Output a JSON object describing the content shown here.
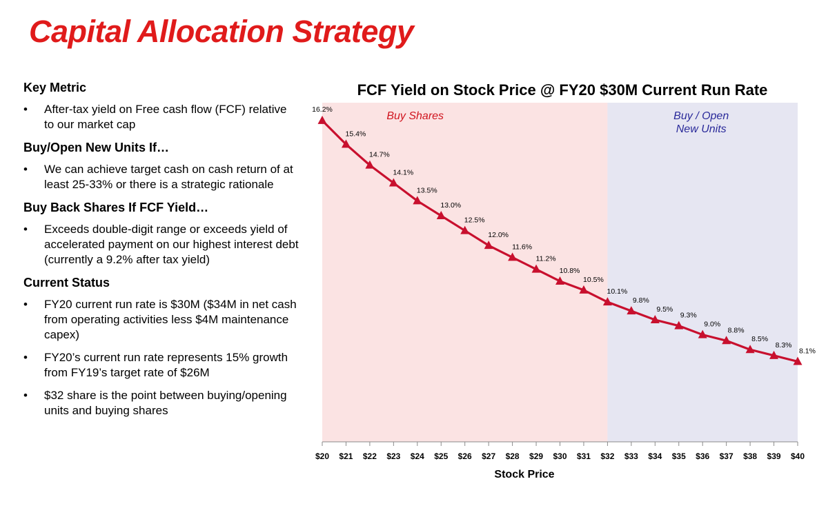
{
  "slide": {
    "title": "Capital Allocation Strategy",
    "sections": [
      {
        "heading": "Key Metric",
        "bullets": [
          "After-tax yield on Free cash flow (FCF) relative to our market cap"
        ]
      },
      {
        "heading": "Buy/Open New Units If…",
        "bullets": [
          "We can achieve target cash on cash return of at least 25-33% or there is a strategic rationale"
        ]
      },
      {
        "heading": "Buy Back Shares If FCF Yield…",
        "bullets": [
          "Exceeds double-digit range or exceeds yield of accelerated payment on our highest interest debt (currently a 9.2% after tax yield)"
        ]
      },
      {
        "heading": "Current Status",
        "bullets": [
          "FY20 current run rate is $30M ($34M in net cash from operating activities less $4M maintenance capex)",
          "FY20’s current run rate represents 15% growth from FY19’s target rate of $26M",
          "$32 share is the point between buying/opening units and buying shares"
        ]
      }
    ]
  },
  "colors": {
    "title": "#e01b1b",
    "line": "#c8102e",
    "buy_shares_region": "#fbe3e3",
    "buy_open_region": "#e6e6f2",
    "buy_shares_text": "#d0141e",
    "buy_open_text": "#2a2a9a"
  },
  "chart_data": {
    "type": "line",
    "title": "FCF Yield on Stock Price @ FY20 $30M Current Run Rate",
    "xlabel": "Stock Price",
    "ylabel": "",
    "categories": [
      "$20",
      "$21",
      "$22",
      "$23",
      "$24",
      "$25",
      "$26",
      "$27",
      "$28",
      "$29",
      "$30",
      "$31",
      "$32",
      "$33",
      "$34",
      "$35",
      "$36",
      "$37",
      "$38",
      "$39",
      "$40"
    ],
    "series": [
      {
        "name": "",
        "values": [
          16.2,
          15.4,
          14.7,
          14.1,
          13.5,
          13.0,
          12.5,
          12.0,
          11.6,
          11.2,
          10.8,
          10.5,
          10.1,
          9.8,
          9.5,
          9.3,
          9.0,
          8.8,
          8.5,
          8.3,
          8.1
        ],
        "labels": [
          "16.2%",
          "15.4%",
          "14.7%",
          "14.1%",
          "13.5%",
          "13.0%",
          "12.5%",
          "12.0%",
          "11.6%",
          "11.2%",
          "10.8%",
          "10.5%",
          "10.1%",
          "9.8%",
          "9.5%",
          "9.3%",
          "9.0%",
          "8.8%",
          "8.5%",
          "8.3%",
          "8.1%"
        ],
        "marker": "triangle"
      }
    ],
    "regions": [
      {
        "label": "Buy Shares",
        "from": "$20",
        "to": "$32",
        "color_key": "buy_shares_region",
        "text_color_key": "buy_shares_text"
      },
      {
        "label": "Buy / Open\nNew Units",
        "from": "$32",
        "to": "$40",
        "color_key": "buy_open_region",
        "text_color_key": "buy_open_text"
      }
    ],
    "ylim": [
      5.4,
      16.8
    ],
    "grid": false,
    "legend": "none"
  }
}
